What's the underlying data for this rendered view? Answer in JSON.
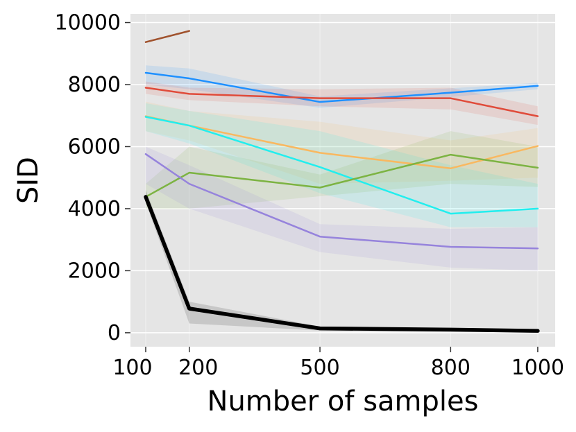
{
  "chart_data": {
    "type": "line",
    "xlabel": "Number of samples",
    "ylabel": "SID",
    "x": [
      100,
      200,
      500,
      800,
      1000
    ],
    "xlim": [
      65,
      1040
    ],
    "ylim": [
      -450,
      10280
    ],
    "x_ticks": [
      "100",
      "200",
      "500",
      "800",
      "1000"
    ],
    "y_ticks": [
      "0",
      "2000",
      "4000",
      "6000",
      "8000",
      "10000"
    ],
    "y_tick_values": [
      0,
      2000,
      4000,
      6000,
      8000,
      10000
    ],
    "grid": true,
    "background": "#e5e5e5",
    "grid_color": "#ffffff",
    "series": [
      {
        "color": "#a0522d",
        "width": 2.5,
        "x": [
          100,
          200
        ],
        "values": [
          9370,
          9730
        ],
        "lower": [
          9340,
          9700
        ],
        "upper": [
          9400,
          9760
        ]
      },
      {
        "color": "#1e90ff",
        "width": 2.5,
        "x": [
          100,
          200,
          500,
          800,
          1000
        ],
        "values": [
          8380,
          8200,
          7440,
          7740,
          7960
        ],
        "lower": [
          8000,
          7850,
          7250,
          7600,
          7850
        ],
        "upper": [
          8620,
          8520,
          7620,
          7880,
          8060
        ]
      },
      {
        "color": "#e04b3a",
        "width": 2.5,
        "x": [
          100,
          200,
          500,
          800,
          1000
        ],
        "values": [
          7900,
          7700,
          7560,
          7560,
          6980
        ],
        "lower": [
          7700,
          7500,
          7300,
          7200,
          6700
        ],
        "upper": [
          8100,
          7900,
          7850,
          7900,
          7300
        ]
      },
      {
        "color": "#f9b860",
        "width": 2.5,
        "x": [
          100,
          200,
          500,
          800,
          1000
        ],
        "values": [
          6980,
          6680,
          5800,
          5300,
          6020
        ],
        "lower": [
          6500,
          6200,
          4800,
          4900,
          5000
        ],
        "upper": [
          7450,
          7150,
          6800,
          6200,
          6600
        ]
      },
      {
        "color": "#22eeee",
        "width": 2.5,
        "x": [
          100,
          200,
          500,
          800,
          1000
        ],
        "values": [
          6960,
          6680,
          5340,
          3840,
          4000
        ],
        "lower": [
          6500,
          6100,
          4500,
          3400,
          3400
        ],
        "upper": [
          7400,
          7150,
          6500,
          5400,
          4800
        ]
      },
      {
        "color": "#7cb342",
        "width": 2.5,
        "x": [
          100,
          200,
          500,
          800,
          1000
        ],
        "values": [
          4380,
          5160,
          4680,
          5740,
          5320
        ],
        "lower": [
          4000,
          4000,
          4400,
          4800,
          4700
        ],
        "upper": [
          4800,
          6000,
          5100,
          6500,
          6000
        ]
      },
      {
        "color": "#9683dc",
        "width": 2.5,
        "x": [
          100,
          200,
          500,
          800,
          1000
        ],
        "values": [
          5760,
          4800,
          3100,
          2770,
          2720
        ],
        "lower": [
          4800,
          4000,
          2600,
          2100,
          2000
        ],
        "upper": [
          6000,
          5400,
          3500,
          3350,
          3400
        ]
      },
      {
        "color": "#000000",
        "width": 5.5,
        "x": [
          100,
          200,
          500,
          800,
          1000
        ],
        "values": [
          4380,
          780,
          140,
          100,
          60
        ],
        "lower": [
          4200,
          300,
          70,
          50,
          20
        ],
        "upper": [
          4600,
          1000,
          200,
          150,
          100
        ]
      }
    ]
  }
}
